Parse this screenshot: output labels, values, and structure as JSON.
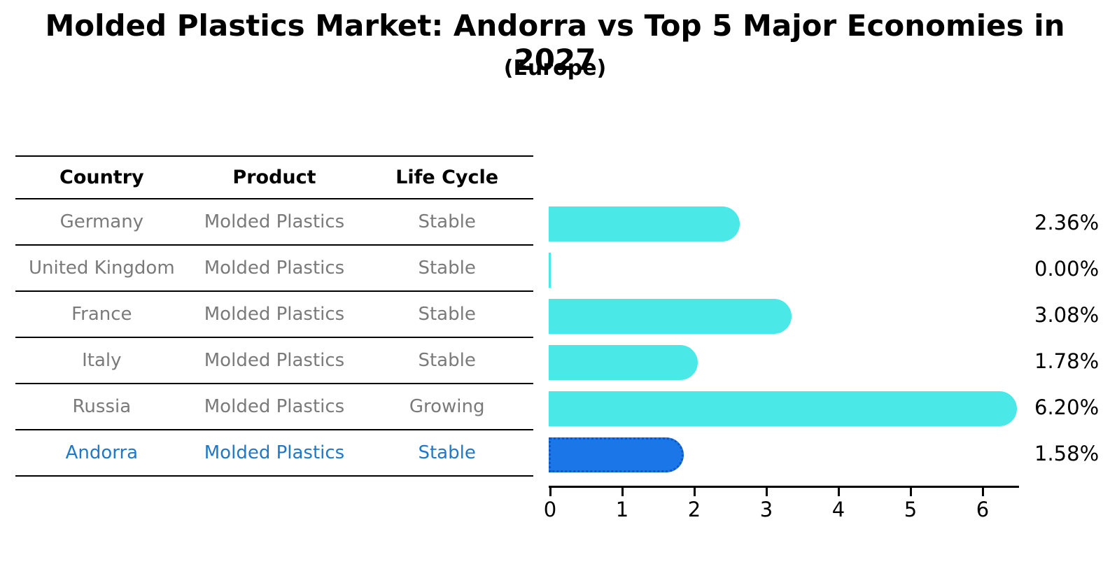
{
  "title": "Molded Plastics Market: Andorra vs Top 5 Major Economies in 2027",
  "subtitle": "(Europe)",
  "table": {
    "headers": [
      "Country",
      "Product",
      "Life Cycle"
    ],
    "rows": [
      {
        "country": "Germany",
        "product": "Molded Plastics",
        "life_cycle": "Stable",
        "highlight": false
      },
      {
        "country": "United Kingdom",
        "product": "Molded Plastics",
        "life_cycle": "Stable",
        "highlight": false
      },
      {
        "country": "France",
        "product": "Molded Plastics",
        "life_cycle": "Stable",
        "highlight": false
      },
      {
        "country": "Italy",
        "product": "Molded Plastics",
        "life_cycle": "Stable",
        "highlight": false
      },
      {
        "country": "Russia",
        "product": "Molded Plastics",
        "life_cycle": "Growing",
        "highlight": false
      },
      {
        "country": "Andorra",
        "product": "Molded Plastics",
        "life_cycle": "Stable",
        "highlight": true
      }
    ]
  },
  "chart_data": {
    "type": "bar",
    "orientation": "horizontal",
    "title": "Molded Plastics Market: Andorra vs Top 5 Major Economies in 2027 (Europe)",
    "categories": [
      "Germany",
      "United Kingdom",
      "France",
      "Italy",
      "Russia",
      "Andorra"
    ],
    "values": [
      2.36,
      0.0,
      3.08,
      1.78,
      6.2,
      1.58
    ],
    "value_labels": [
      "2.36%",
      "0.00%",
      "3.08%",
      "1.78%",
      "6.20%",
      "1.58%"
    ],
    "x_ticks": [
      "0",
      "1",
      "2",
      "3",
      "4",
      "5",
      "6"
    ],
    "xlim": [
      0,
      6.5
    ],
    "grid": false,
    "legend_position": "none",
    "bar_color": "#4BE8E8",
    "highlight_index": 5,
    "highlight_bar_color": "#1B76E8",
    "highlight_border_color": "#1057C0"
  },
  "colors": {
    "row_text": "#7a7a7a",
    "highlight_text": "#1F78C8",
    "axis": "#000000",
    "title_text": "#000000"
  }
}
